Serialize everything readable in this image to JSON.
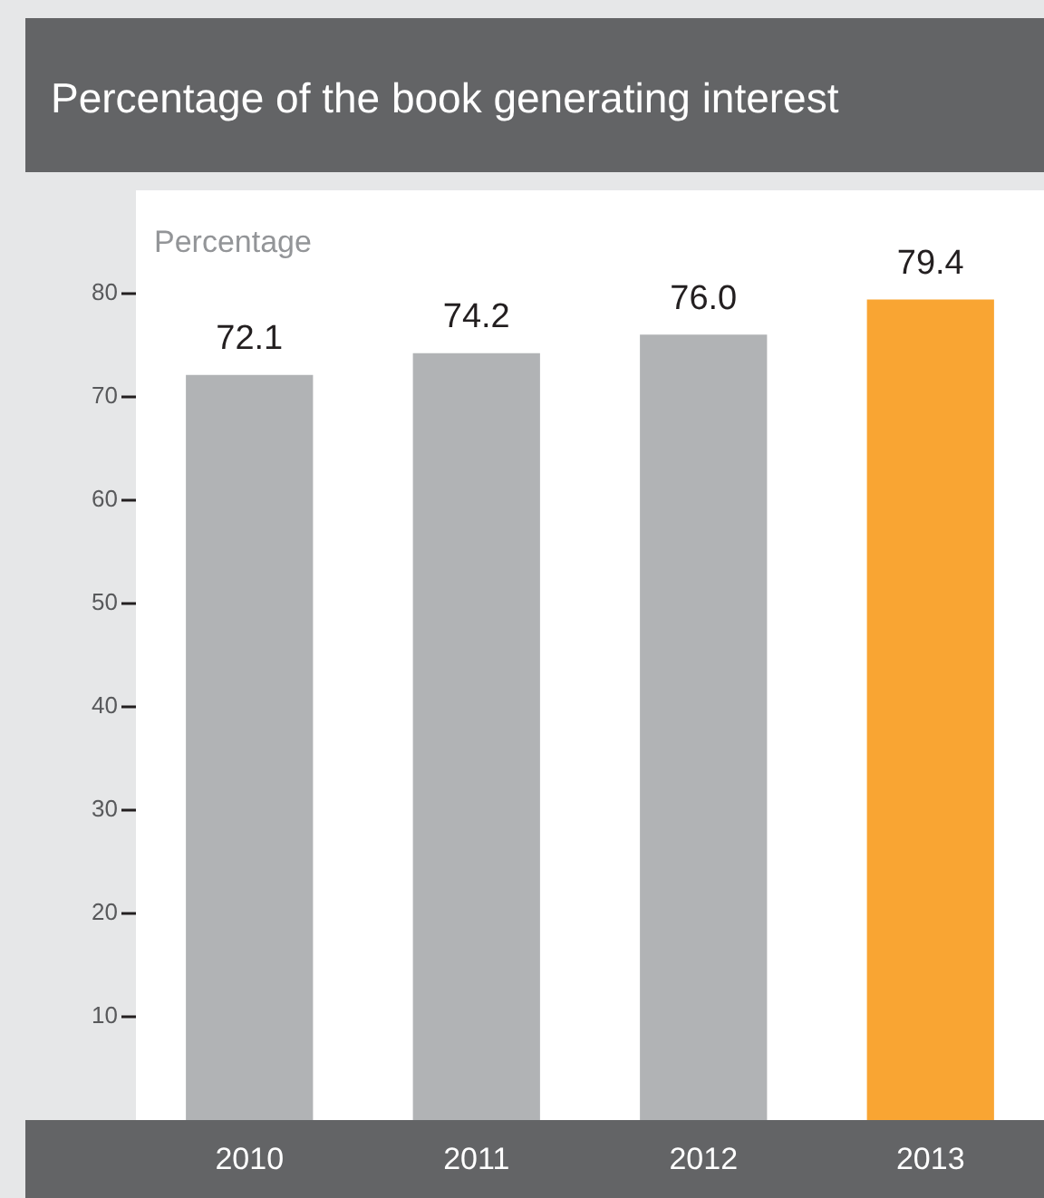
{
  "chart_data": {
    "type": "bar",
    "title": "Percentage of the book generating interest",
    "ylabel": "Percentage",
    "categories": [
      "2010",
      "2011",
      "2012",
      "2013"
    ],
    "values": [
      72.1,
      74.2,
      76.0,
      79.4
    ],
    "colors": [
      "#b1b3b5",
      "#b1b3b5",
      "#b1b3b5",
      "#f9a533"
    ],
    "value_labels": [
      "72.1",
      "74.2",
      "76.0",
      "79.4"
    ],
    "ylim": [
      0,
      90
    ],
    "yticks": [
      10,
      20,
      30,
      40,
      50,
      60,
      70,
      80
    ],
    "grid": false,
    "legend": false
  }
}
